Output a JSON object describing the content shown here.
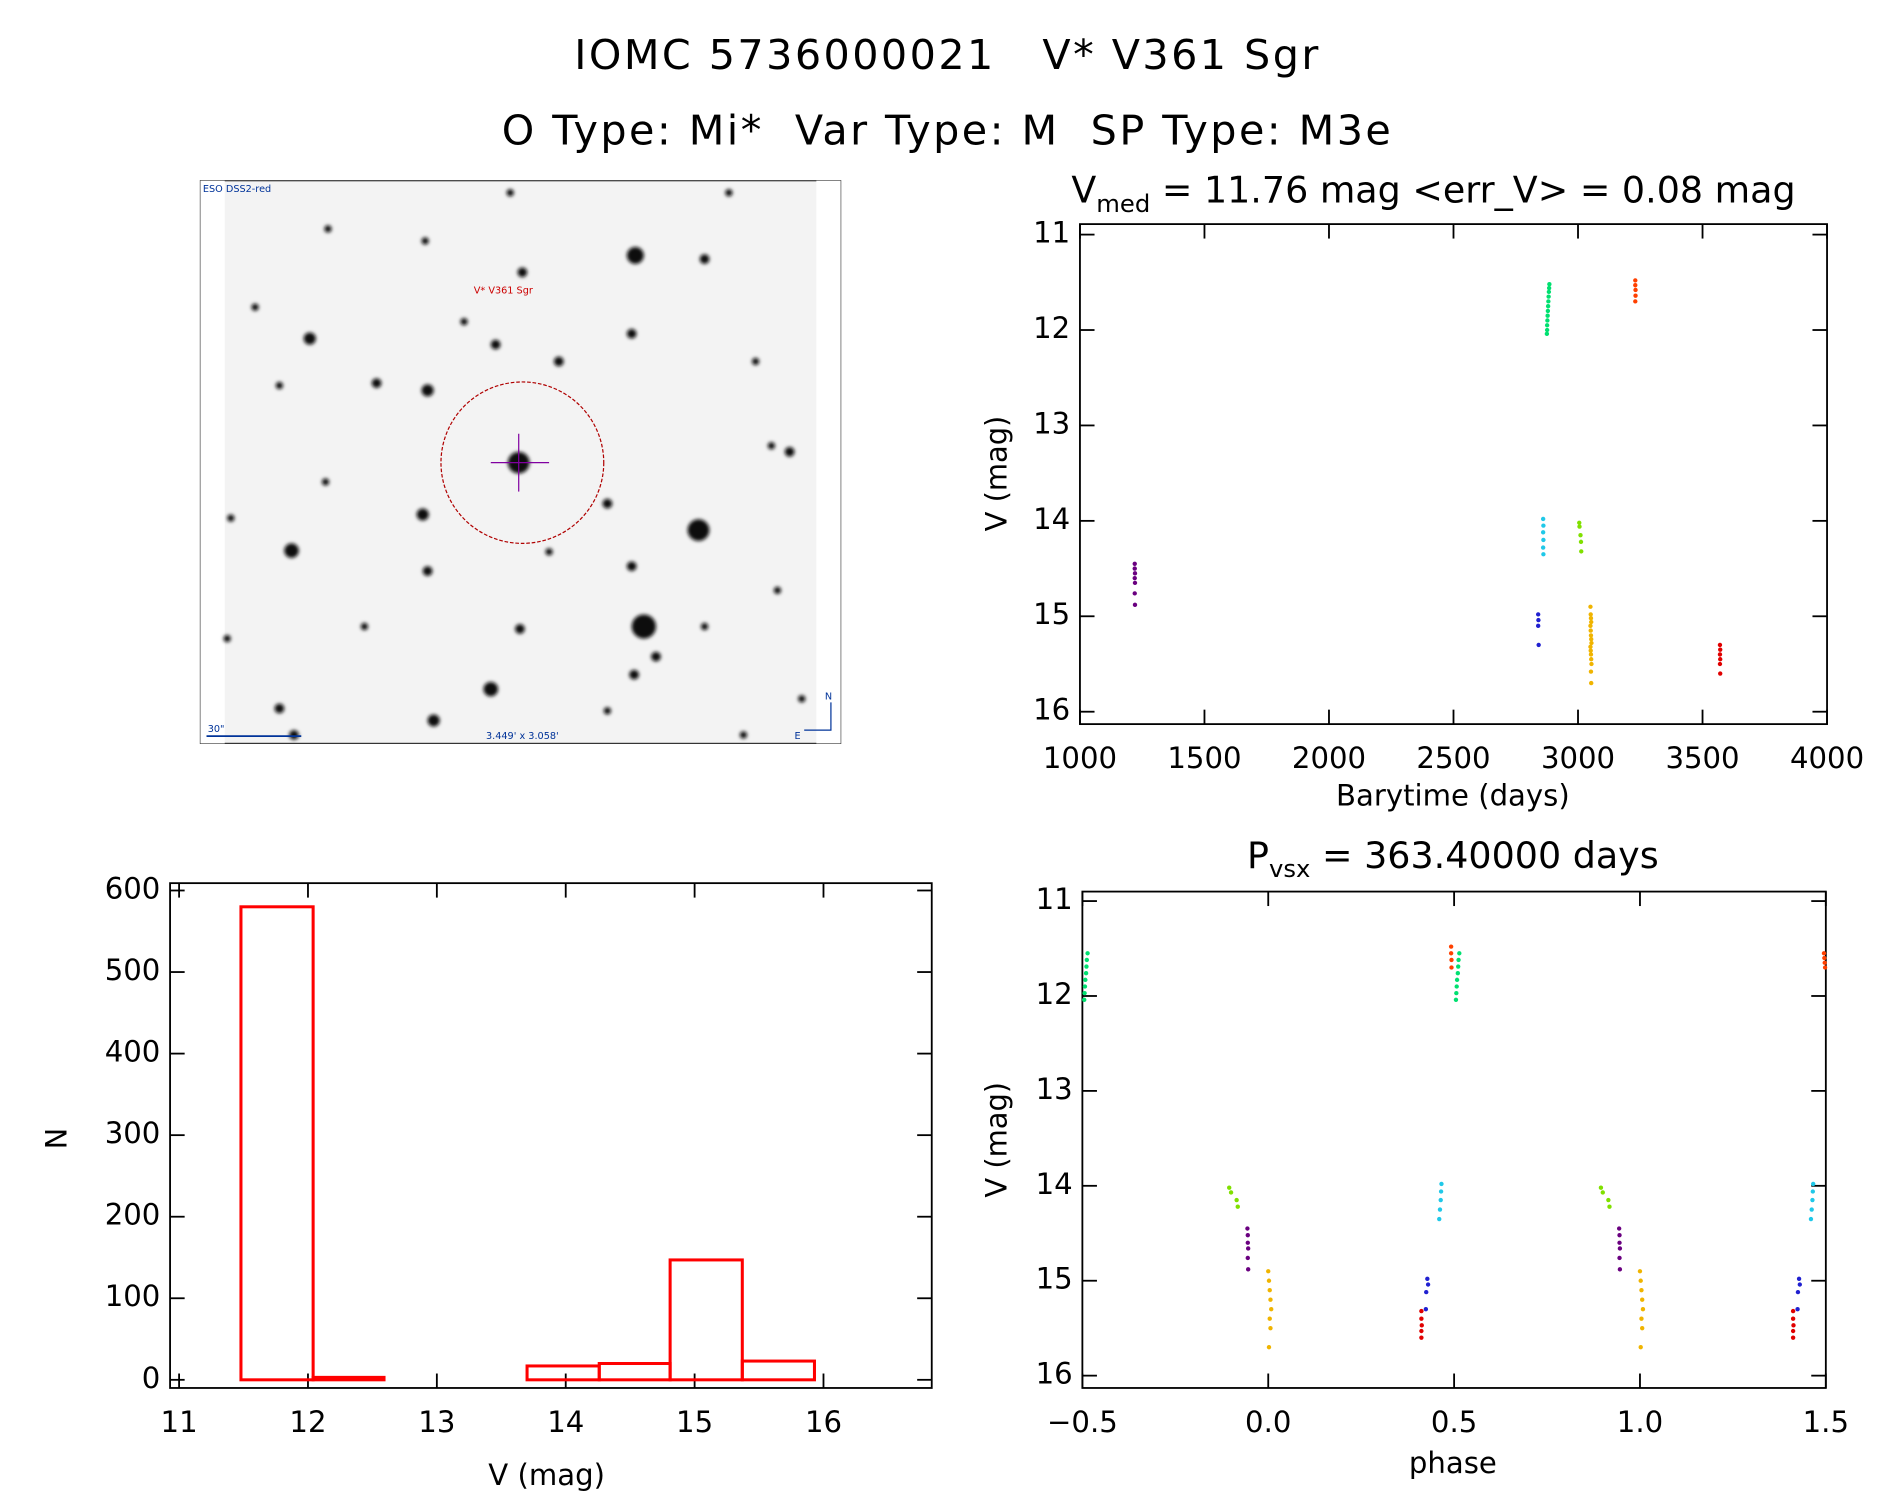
{
  "header": {
    "title": "IOMC 5736000021   V* V361 Sgr",
    "subtitle": "O Type: Mi*  Var Type: M  SP Type: M3e"
  },
  "image": {
    "survey": "ESO DSS2-red",
    "target": "V* V361 Sgr",
    "scale": "30\"",
    "size": "3.449' x 3.058'",
    "north": "N",
    "east": "E"
  },
  "chart_data": [
    {
      "type": "scatter",
      "title_parts": [
        "V",
        "med",
        " = 11.76 mag <err_V> = 0.08 mag"
      ],
      "x_label": "Barytime (days)",
      "y_label": "V (mag)",
      "xlim": [
        1000,
        4000
      ],
      "xticks": [
        1000,
        1500,
        2000,
        2500,
        3000,
        3500,
        4000
      ],
      "ylim": [
        16.13,
        10.89
      ],
      "yticks": [
        11,
        12,
        13,
        14,
        15,
        16
      ],
      "series": [
        {
          "color": "#6a0080",
          "x": [
            1220,
            1220,
            1221,
            1220,
            1221,
            1220,
            1221
          ],
          "values": [
            14.45,
            14.5,
            14.55,
            14.6,
            14.65,
            14.76,
            14.88
          ]
        },
        {
          "color": "#2020d0",
          "x": [
            2840,
            2841,
            2840,
            2842
          ],
          "values": [
            14.98,
            15.04,
            15.1,
            15.3
          ]
        },
        {
          "color": "#20c8e8",
          "x": [
            2860,
            2861,
            2860,
            2861,
            2860,
            2861
          ],
          "values": [
            13.98,
            14.05,
            14.12,
            14.2,
            14.28,
            14.35
          ]
        },
        {
          "color": "#00e070",
          "x": [
            2875,
            2876,
            2876,
            2877,
            2878,
            2879,
            2880,
            2881,
            2882,
            2883,
            2884,
            2885
          ],
          "values": [
            12.04,
            12.0,
            11.95,
            11.9,
            11.85,
            11.8,
            11.75,
            11.7,
            11.65,
            11.6,
            11.56,
            11.52
          ]
        },
        {
          "color": "#80e000",
          "x": [
            3005,
            3006,
            3010,
            3012,
            3013
          ],
          "values": [
            14.02,
            14.06,
            14.15,
            14.22,
            14.32
          ]
        },
        {
          "color": "#f0b400",
          "x": [
            3050,
            3051,
            3052,
            3053,
            3050,
            3051,
            3052,
            3053,
            3054,
            3050,
            3051,
            3052,
            3053,
            3054,
            3052,
            3053
          ],
          "values": [
            14.9,
            14.98,
            15.02,
            15.06,
            15.1,
            15.15,
            15.2,
            15.24,
            15.28,
            15.32,
            15.36,
            15.4,
            15.45,
            15.5,
            15.58,
            15.7
          ]
        },
        {
          "color": "#ff4000",
          "x": [
            3230,
            3230,
            3231,
            3231,
            3230
          ],
          "values": [
            11.48,
            11.53,
            11.58,
            11.64,
            11.7
          ]
        },
        {
          "color": "#e00000",
          "x": [
            3570,
            3571,
            3570,
            3571,
            3570,
            3571
          ],
          "values": [
            15.3,
            15.35,
            15.4,
            15.45,
            15.5,
            15.6
          ]
        }
      ]
    },
    {
      "type": "histogram",
      "x_label": "V (mag)",
      "y_label": "N",
      "color": "#ff0000",
      "bins": [
        11.48,
        12.04,
        12.59,
        13.15,
        13.7,
        14.26,
        14.81,
        15.37,
        15.93
      ],
      "values": [
        580,
        3,
        0,
        0,
        17,
        20,
        147,
        23
      ],
      "xlim": [
        10.93,
        16.84
      ],
      "xticks": [
        11,
        12,
        13,
        14,
        15,
        16
      ],
      "ylim": [
        -10,
        609
      ],
      "yticks": [
        0,
        100,
        200,
        300,
        400,
        500,
        600
      ]
    },
    {
      "type": "scatter",
      "title_parts": [
        "P",
        "vsx",
        " = 363.40000 days"
      ],
      "x_label": "phase",
      "y_label": "V (mag)",
      "xlim": [
        -0.5,
        1.5
      ],
      "xticks": [
        {
          "value": -0.5,
          "label": "−0.5"
        },
        {
          "value": 0,
          "label": "0.0"
        },
        0.5,
        {
          "value": 1,
          "label": "1.0"
        },
        1.5
      ],
      "ylim": [
        16.13,
        10.9
      ],
      "yticks": [
        11,
        12,
        13,
        14,
        15,
        16
      ],
      "series": [
        {
          "color": "#00e070",
          "x": [
            -0.495,
            -0.494,
            -0.493,
            -0.492,
            -0.49,
            -0.489,
            -0.488,
            -0.486,
            0.505,
            0.506,
            0.507,
            0.508,
            0.51,
            0.511,
            0.512,
            0.514
          ],
          "values": [
            12.04,
            11.97,
            11.9,
            11.83,
            11.76,
            11.69,
            11.62,
            11.55,
            12.04,
            11.97,
            11.9,
            11.83,
            11.76,
            11.69,
            11.62,
            11.55
          ]
        },
        {
          "color": "#ff4000",
          "x": [
            0.492,
            0.492,
            0.493,
            0.493,
            1.495,
            1.496,
            1.497,
            1.498
          ],
          "values": [
            11.48,
            11.55,
            11.62,
            11.7,
            11.55,
            11.6,
            11.65,
            11.7
          ]
        },
        {
          "color": "#80e000",
          "x": [
            -0.105,
            -0.1,
            -0.085,
            -0.082,
            0.895,
            0.9,
            0.915,
            0.918
          ],
          "values": [
            14.02,
            14.07,
            14.15,
            14.22,
            14.02,
            14.07,
            14.15,
            14.22
          ]
        },
        {
          "color": "#6a0080",
          "x": [
            -0.056,
            -0.055,
            -0.055,
            -0.054,
            -0.055,
            -0.054,
            0.944,
            0.945,
            0.945,
            0.946,
            0.945,
            0.946
          ],
          "values": [
            14.45,
            14.52,
            14.6,
            14.66,
            14.76,
            14.88,
            14.45,
            14.52,
            14.6,
            14.66,
            14.76,
            14.88
          ]
        },
        {
          "color": "#f0b400",
          "x": [
            0,
            0.002,
            0.004,
            0.006,
            0.008,
            0.004,
            0.006,
            0.002,
            1,
            1.002,
            1.004,
            1.006,
            1.008,
            1.004,
            1.006,
            1.002
          ],
          "values": [
            14.9,
            15.0,
            15.1,
            15.2,
            15.3,
            15.4,
            15.5,
            15.7,
            14.9,
            15.0,
            15.1,
            15.2,
            15.3,
            15.4,
            15.5,
            15.7
          ]
        },
        {
          "color": "#2020d0",
          "x": [
            0.428,
            0.43,
            0.425,
            0.424,
            1.428,
            1.43,
            1.425,
            1.424
          ],
          "values": [
            14.98,
            15.04,
            15.12,
            15.3,
            14.98,
            15.04,
            15.12,
            15.3
          ]
        },
        {
          "color": "#e00000",
          "x": [
            0.412,
            0.412,
            0.413,
            0.412,
            0.412,
            1.412,
            1.412,
            1.413,
            1.412,
            1.412
          ],
          "values": [
            15.32,
            15.4,
            15.47,
            15.53,
            15.6,
            15.32,
            15.4,
            15.47,
            15.53,
            15.6
          ]
        },
        {
          "color": "#20c8e8",
          "x": [
            0.466,
            0.465,
            0.464,
            0.462,
            0.46,
            1.466,
            1.465,
            1.464,
            1.462,
            1.46
          ],
          "values": [
            13.98,
            14.06,
            14.15,
            14.25,
            14.35,
            13.98,
            14.06,
            14.15,
            14.25,
            14.35
          ]
        }
      ]
    }
  ]
}
